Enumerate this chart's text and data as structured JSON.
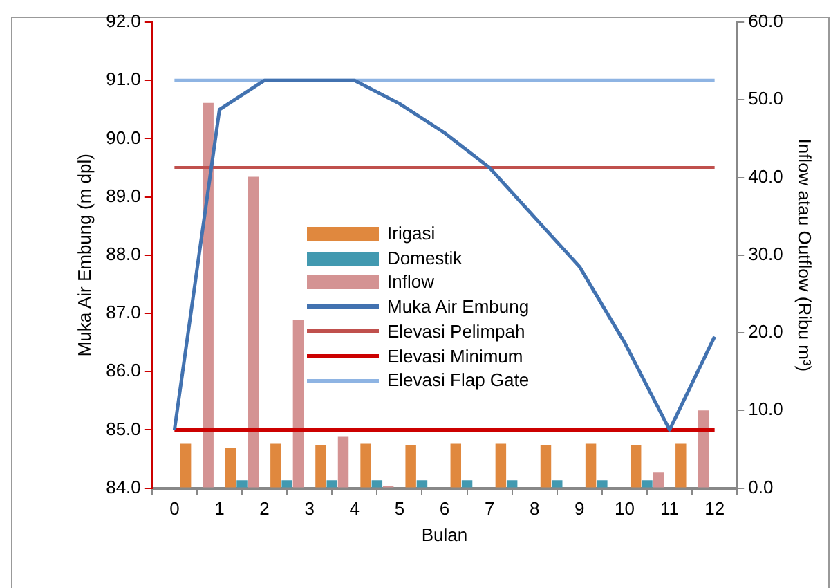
{
  "chart_data": {
    "type": "bar",
    "xlabel": "Bulan",
    "ylabel": "Muka Air Embung (m dpl)",
    "y2label": "Inflow atau Outflow (Ribu m³)",
    "xlim": [
      0,
      12
    ],
    "xticks": [
      0,
      1,
      2,
      3,
      4,
      5,
      6,
      7,
      8,
      9,
      10,
      11,
      12
    ],
    "ylim": [
      84,
      92
    ],
    "yticks": [
      {
        "value": 84,
        "label": "84.0"
      },
      {
        "value": 85,
        "label": "85.0"
      },
      {
        "value": 86,
        "label": "86.0"
      },
      {
        "value": 87,
        "label": "87.0"
      },
      {
        "value": 88,
        "label": "88.0"
      },
      {
        "value": 89,
        "label": "89.0"
      },
      {
        "value": 90,
        "label": "90.0"
      },
      {
        "value": 91,
        "label": "91.0"
      },
      {
        "value": 92,
        "label": "92.0"
      }
    ],
    "y2lim": [
      0,
      60
    ],
    "y2ticks": [
      {
        "value": 0,
        "label": "0.0"
      },
      {
        "value": 10,
        "label": "10.0"
      },
      {
        "value": 20,
        "label": "20.0"
      },
      {
        "value": 30,
        "label": "30.0"
      },
      {
        "value": 40,
        "label": "40.0"
      },
      {
        "value": 50,
        "label": "50.0"
      },
      {
        "value": 60,
        "label": "60.0"
      }
    ],
    "grid": false,
    "legend": "center",
    "series": [
      {
        "name": "Irigasi",
        "axis": "y2",
        "color": "#e0883e",
        "x": [
          0.5,
          1.5,
          2.5,
          3.5,
          4.5,
          5.5,
          6.5,
          7.5,
          8.5,
          9.5,
          10.5,
          11.5
        ],
        "values": [
          5.7,
          5.2,
          5.7,
          5.5,
          5.7,
          5.5,
          5.7,
          5.7,
          5.5,
          5.7,
          5.5,
          5.7
        ]
      },
      {
        "name": "Domestik",
        "axis": "y2",
        "color": "#4299b0",
        "x": [
          1.5,
          2.5,
          3.5,
          4.5,
          5.5,
          6.5,
          7.5,
          8.5,
          9.5,
          10.5
        ],
        "values": [
          1.0,
          1.0,
          1.0,
          1.0,
          1.0,
          1.0,
          1.0,
          1.0,
          1.0,
          1.0
        ]
      },
      {
        "name": "Inflow",
        "axis": "y2",
        "color": "#d49393",
        "x": [
          0.5,
          1.5,
          2.5,
          3.5,
          4.5,
          5.5,
          6.5,
          7.5,
          8.5,
          9.5,
          10.5,
          11.5
        ],
        "values": [
          49.6,
          40.1,
          21.6,
          6.7,
          0.3,
          0,
          0,
          0,
          0,
          0,
          2.0,
          10.0
        ]
      },
      {
        "name": "Muka Air Embung",
        "type": "line",
        "color": "#4272b0",
        "x": [
          0,
          1,
          2,
          3,
          4,
          5,
          6,
          7,
          8,
          9,
          10,
          11,
          12
        ],
        "values": [
          85.0,
          90.5,
          91.0,
          91.0,
          91.0,
          90.6,
          90.1,
          89.5,
          88.65,
          87.8,
          86.5,
          85.0,
          86.6
        ]
      }
    ],
    "ref_lines": [
      {
        "axis": "y",
        "value": 89.5,
        "label": "Elevasi Pelimpah",
        "color": "#c0504d"
      },
      {
        "axis": "y",
        "value": 85.0,
        "label": "Elevasi Minimum",
        "color": "#cc0000"
      },
      {
        "axis": "y",
        "value": 91.0,
        "label": "Elevasi Flap Gate",
        "color": "#8eb4e3"
      }
    ],
    "marker": "none",
    "line_style": "solid"
  }
}
